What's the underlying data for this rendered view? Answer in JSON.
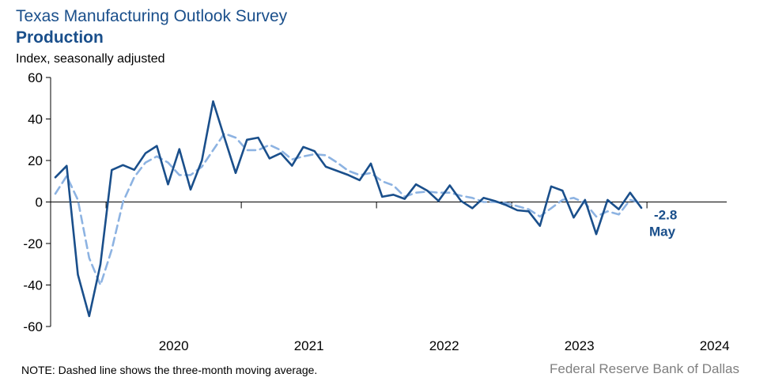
{
  "chart_data": {
    "type": "line",
    "title": "Texas Manufacturing Outlook Survey",
    "subtitle": "Production",
    "ylabel": "Index, seasonally adjusted",
    "ylim": [
      -60,
      60
    ],
    "yticks": [
      "60",
      "40",
      "20",
      "0",
      "-20",
      "-40",
      "-60"
    ],
    "year_labels": [
      "2020",
      "2021",
      "2022",
      "2023",
      "2024"
    ],
    "x_start": "2019-08",
    "x_end": "2024-05",
    "series": [
      {
        "name": "Production index",
        "style": "solid",
        "color": "#1a4f8b",
        "values": [
          11.9,
          17.4,
          -35.0,
          -55.0,
          -30.0,
          15.4,
          17.8,
          15.5,
          23.5,
          27.0,
          8.5,
          25.5,
          6.0,
          20.0,
          48.5,
          31.0,
          14.0,
          30.0,
          31.0,
          21.0,
          23.5,
          17.5,
          26.5,
          24.5,
          17.0,
          15.0,
          13.0,
          10.5,
          18.5,
          2.5,
          3.5,
          1.5,
          8.5,
          5.5,
          0.5,
          8.0,
          0.5,
          -3.0,
          2.0,
          0.5,
          -1.5,
          -4.0,
          -4.5,
          -11.5,
          7.5,
          5.5,
          -7.5,
          1.0,
          -15.5,
          1.0,
          -3.5,
          4.5,
          -2.8
        ]
      },
      {
        "name": "Three-month moving average",
        "style": "dashed",
        "color": "#8db3e2",
        "values": [
          4.0,
          12.5,
          1.0,
          -27.0,
          -40.0,
          -23.0,
          0.0,
          12.0,
          19.0,
          22.0,
          19.0,
          13.0,
          13.0,
          17.0,
          25.0,
          33.0,
          31.0,
          25.0,
          25.0,
          27.5,
          25.0,
          20.5,
          22.0,
          23.0,
          22.5,
          19.0,
          15.0,
          13.0,
          14.0,
          10.0,
          8.0,
          2.5,
          4.5,
          5.0,
          4.5,
          4.5,
          3.0,
          2.0,
          0.0,
          0.0,
          -0.5,
          -2.0,
          -3.5,
          -7.0,
          -3.0,
          1.0,
          2.0,
          -0.5,
          -7.0,
          -4.5,
          -6.0,
          1.0,
          -0.5
        ]
      }
    ],
    "annotation": {
      "value": "-2.8",
      "month": "May"
    },
    "note": "NOTE: Dashed line shows the three-month  moving average.",
    "source": "Federal Reserve Bank of Dallas"
  }
}
